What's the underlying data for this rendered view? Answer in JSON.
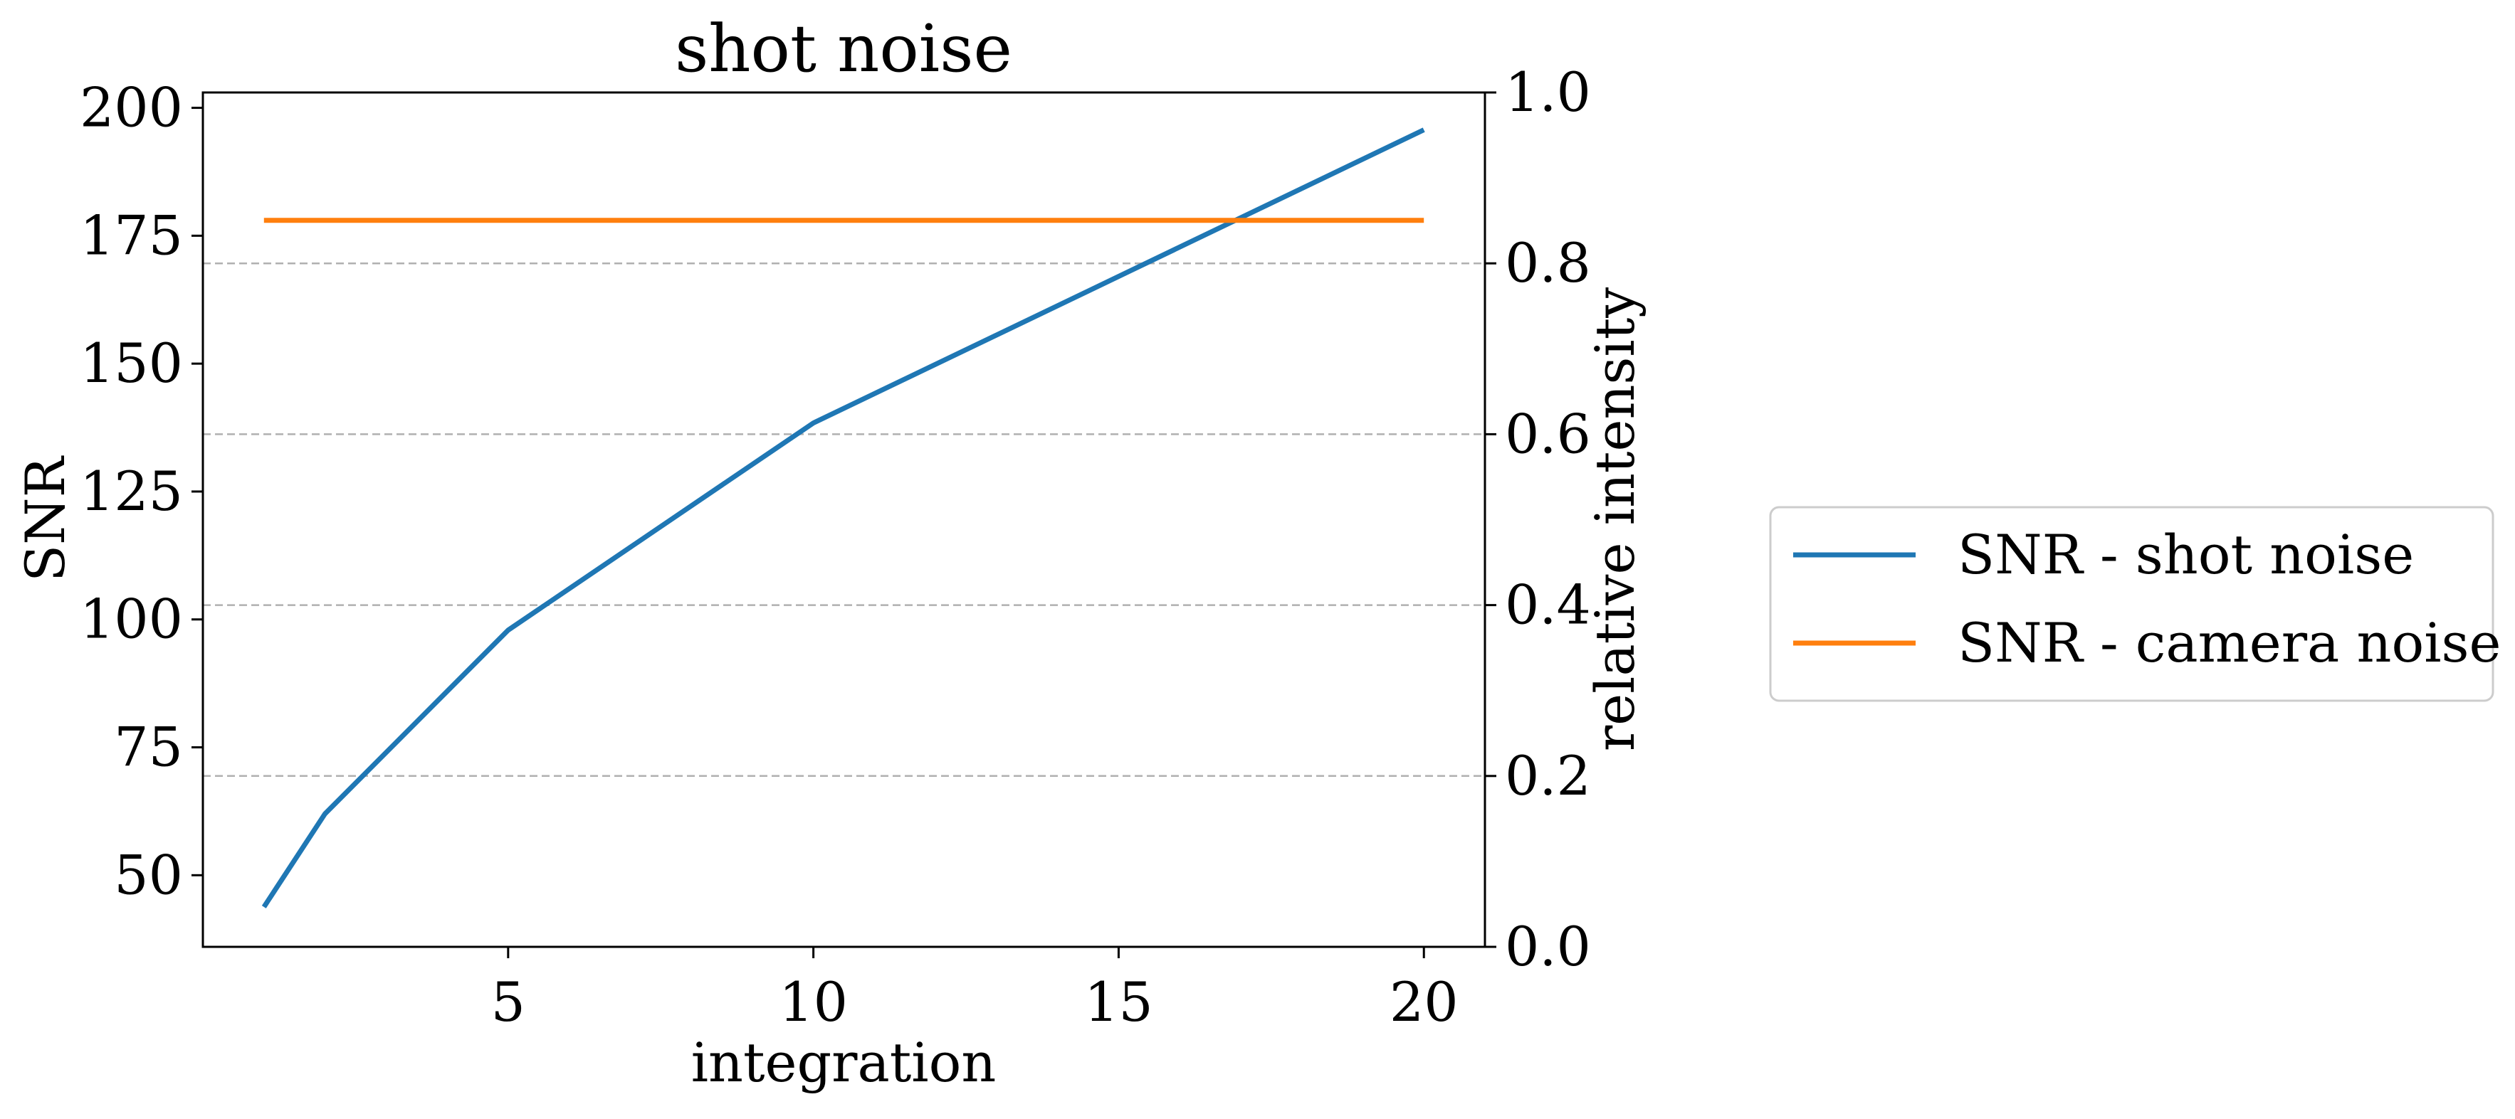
{
  "chart_data": {
    "type": "line",
    "title": "shot noise",
    "xlabel": "integration",
    "ylabel": "SNR",
    "y2label": "relative intensity",
    "xlim": [
      0,
      21
    ],
    "ylim": [
      36,
      203
    ],
    "y2lim": [
      0.0,
      1.0
    ],
    "xticks": [
      5,
      10,
      15,
      20
    ],
    "yticks": [
      50,
      75,
      100,
      125,
      150,
      175,
      200
    ],
    "y2ticks": [
      "0.0",
      "0.2",
      "0.4",
      "0.6",
      "0.8",
      "1.0"
    ],
    "grid": "dashed horizontal at right-axis ticks",
    "legend_placement": "outside right",
    "series": [
      {
        "name": "SNR - shot noise",
        "color": "#1f77b4",
        "x": [
          1,
          2,
          5,
          10,
          20
        ],
        "y": [
          43.8,
          62,
          97.9,
          138.4,
          195.7
        ]
      },
      {
        "name": "SNR - camera noise",
        "color": "#ff7f0e",
        "x": [
          1,
          20
        ],
        "y": [
          178,
          178
        ]
      }
    ]
  }
}
